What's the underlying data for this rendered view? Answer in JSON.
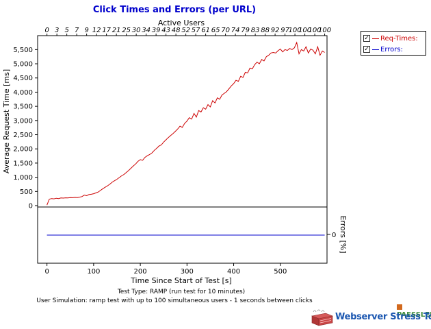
{
  "chart_data": {
    "type": "line",
    "title": "Click Times and Errors (per URL)",
    "top_axis": {
      "label": "Active Users",
      "ticks": [
        "0",
        "3",
        "5",
        "7",
        "9",
        "12",
        "17",
        "21",
        "25",
        "30",
        "34",
        "39",
        "43",
        "48",
        "52",
        "57",
        "61",
        "65",
        "70",
        "74",
        "79",
        "83",
        "88",
        "92",
        "97",
        "100",
        "100",
        "100",
        "100"
      ]
    },
    "xlabel": "Time Since Start of Test [s]",
    "xlim": [
      -20,
      600
    ],
    "xticks": [
      0,
      100,
      200,
      300,
      400,
      500
    ],
    "ylabel_top": "Average Request Time [ms]",
    "ylim_top": [
      0,
      5750
    ],
    "yticks_top": [
      "0",
      "500",
      "1,000",
      "1,500",
      "2,000",
      "2,500",
      "3,000",
      "3,500",
      "4,000",
      "4,500",
      "5,000",
      "5,500"
    ],
    "ylabel_bottom": "Errors [%]",
    "ytick_bottom": "0",
    "series": [
      {
        "name": "Req-Times:",
        "color": "#cc0000",
        "points": [
          [
            0,
            20
          ],
          [
            5,
            230
          ],
          [
            10,
            250
          ],
          [
            15,
            240
          ],
          [
            20,
            260
          ],
          [
            25,
            250
          ],
          [
            30,
            270
          ],
          [
            35,
            265
          ],
          [
            40,
            275
          ],
          [
            45,
            270
          ],
          [
            50,
            285
          ],
          [
            55,
            280
          ],
          [
            60,
            290
          ],
          [
            65,
            285
          ],
          [
            70,
            300
          ],
          [
            75,
            320
          ],
          [
            80,
            370
          ],
          [
            85,
            350
          ],
          [
            90,
            390
          ],
          [
            95,
            400
          ],
          [
            100,
            420
          ],
          [
            105,
            450
          ],
          [
            110,
            480
          ],
          [
            115,
            540
          ],
          [
            120,
            600
          ],
          [
            125,
            650
          ],
          [
            130,
            700
          ],
          [
            135,
            760
          ],
          [
            140,
            830
          ],
          [
            145,
            880
          ],
          [
            150,
            930
          ],
          [
            155,
            990
          ],
          [
            160,
            1050
          ],
          [
            165,
            1100
          ],
          [
            170,
            1170
          ],
          [
            175,
            1240
          ],
          [
            180,
            1320
          ],
          [
            185,
            1400
          ],
          [
            190,
            1470
          ],
          [
            195,
            1560
          ],
          [
            200,
            1620
          ],
          [
            205,
            1600
          ],
          [
            210,
            1700
          ],
          [
            215,
            1760
          ],
          [
            220,
            1800
          ],
          [
            225,
            1860
          ],
          [
            230,
            1950
          ],
          [
            235,
            2020
          ],
          [
            240,
            2100
          ],
          [
            245,
            2140
          ],
          [
            250,
            2240
          ],
          [
            255,
            2320
          ],
          [
            260,
            2400
          ],
          [
            265,
            2470
          ],
          [
            270,
            2540
          ],
          [
            275,
            2620
          ],
          [
            280,
            2700
          ],
          [
            285,
            2800
          ],
          [
            290,
            2760
          ],
          [
            295,
            2900
          ],
          [
            300,
            2980
          ],
          [
            305,
            3100
          ],
          [
            310,
            3050
          ],
          [
            315,
            3250
          ],
          [
            320,
            3120
          ],
          [
            325,
            3350
          ],
          [
            330,
            3300
          ],
          [
            335,
            3450
          ],
          [
            340,
            3400
          ],
          [
            345,
            3560
          ],
          [
            350,
            3480
          ],
          [
            355,
            3700
          ],
          [
            360,
            3620
          ],
          [
            365,
            3800
          ],
          [
            370,
            3750
          ],
          [
            375,
            3900
          ],
          [
            380,
            3960
          ],
          [
            385,
            4020
          ],
          [
            390,
            4120
          ],
          [
            395,
            4220
          ],
          [
            400,
            4300
          ],
          [
            405,
            4420
          ],
          [
            410,
            4380
          ],
          [
            415,
            4560
          ],
          [
            420,
            4520
          ],
          [
            425,
            4700
          ],
          [
            430,
            4680
          ],
          [
            435,
            4850
          ],
          [
            440,
            4820
          ],
          [
            445,
            4970
          ],
          [
            450,
            5060
          ],
          [
            455,
            5000
          ],
          [
            460,
            5150
          ],
          [
            465,
            5100
          ],
          [
            470,
            5250
          ],
          [
            475,
            5300
          ],
          [
            480,
            5380
          ],
          [
            485,
            5400
          ],
          [
            490,
            5380
          ],
          [
            495,
            5460
          ],
          [
            500,
            5520
          ],
          [
            505,
            5420
          ],
          [
            510,
            5500
          ],
          [
            515,
            5470
          ],
          [
            520,
            5540
          ],
          [
            525,
            5500
          ],
          [
            530,
            5560
          ],
          [
            535,
            5750
          ],
          [
            540,
            5350
          ],
          [
            545,
            5500
          ],
          [
            550,
            5450
          ],
          [
            555,
            5600
          ],
          [
            560,
            5380
          ],
          [
            565,
            5520
          ],
          [
            570,
            5480
          ],
          [
            575,
            5350
          ],
          [
            580,
            5600
          ],
          [
            585,
            5300
          ],
          [
            590,
            5450
          ],
          [
            595,
            5400
          ]
        ]
      },
      {
        "name": "Errors:",
        "color": "#0000cc",
        "points": [
          [
            0,
            0
          ],
          [
            595,
            0
          ]
        ]
      }
    ],
    "legend": "top-right",
    "grid": false,
    "notes": [
      "Test Type: RAMP (run test for 10 minutes)",
      "User Simulation: ramp test with up to 100 simultaneous users - 1 seconds between clicks"
    ]
  },
  "legend_items": [
    {
      "label": "Req-Times:",
      "checked": "✓",
      "color": "#cc0000"
    },
    {
      "label": "Errors:",
      "checked": "✓",
      "color": "#0000cc"
    }
  ],
  "branding": {
    "company": "PAESSLER",
    "product": "Webserver Stress Tool",
    "logo_icon": "server-rack-icon"
  }
}
